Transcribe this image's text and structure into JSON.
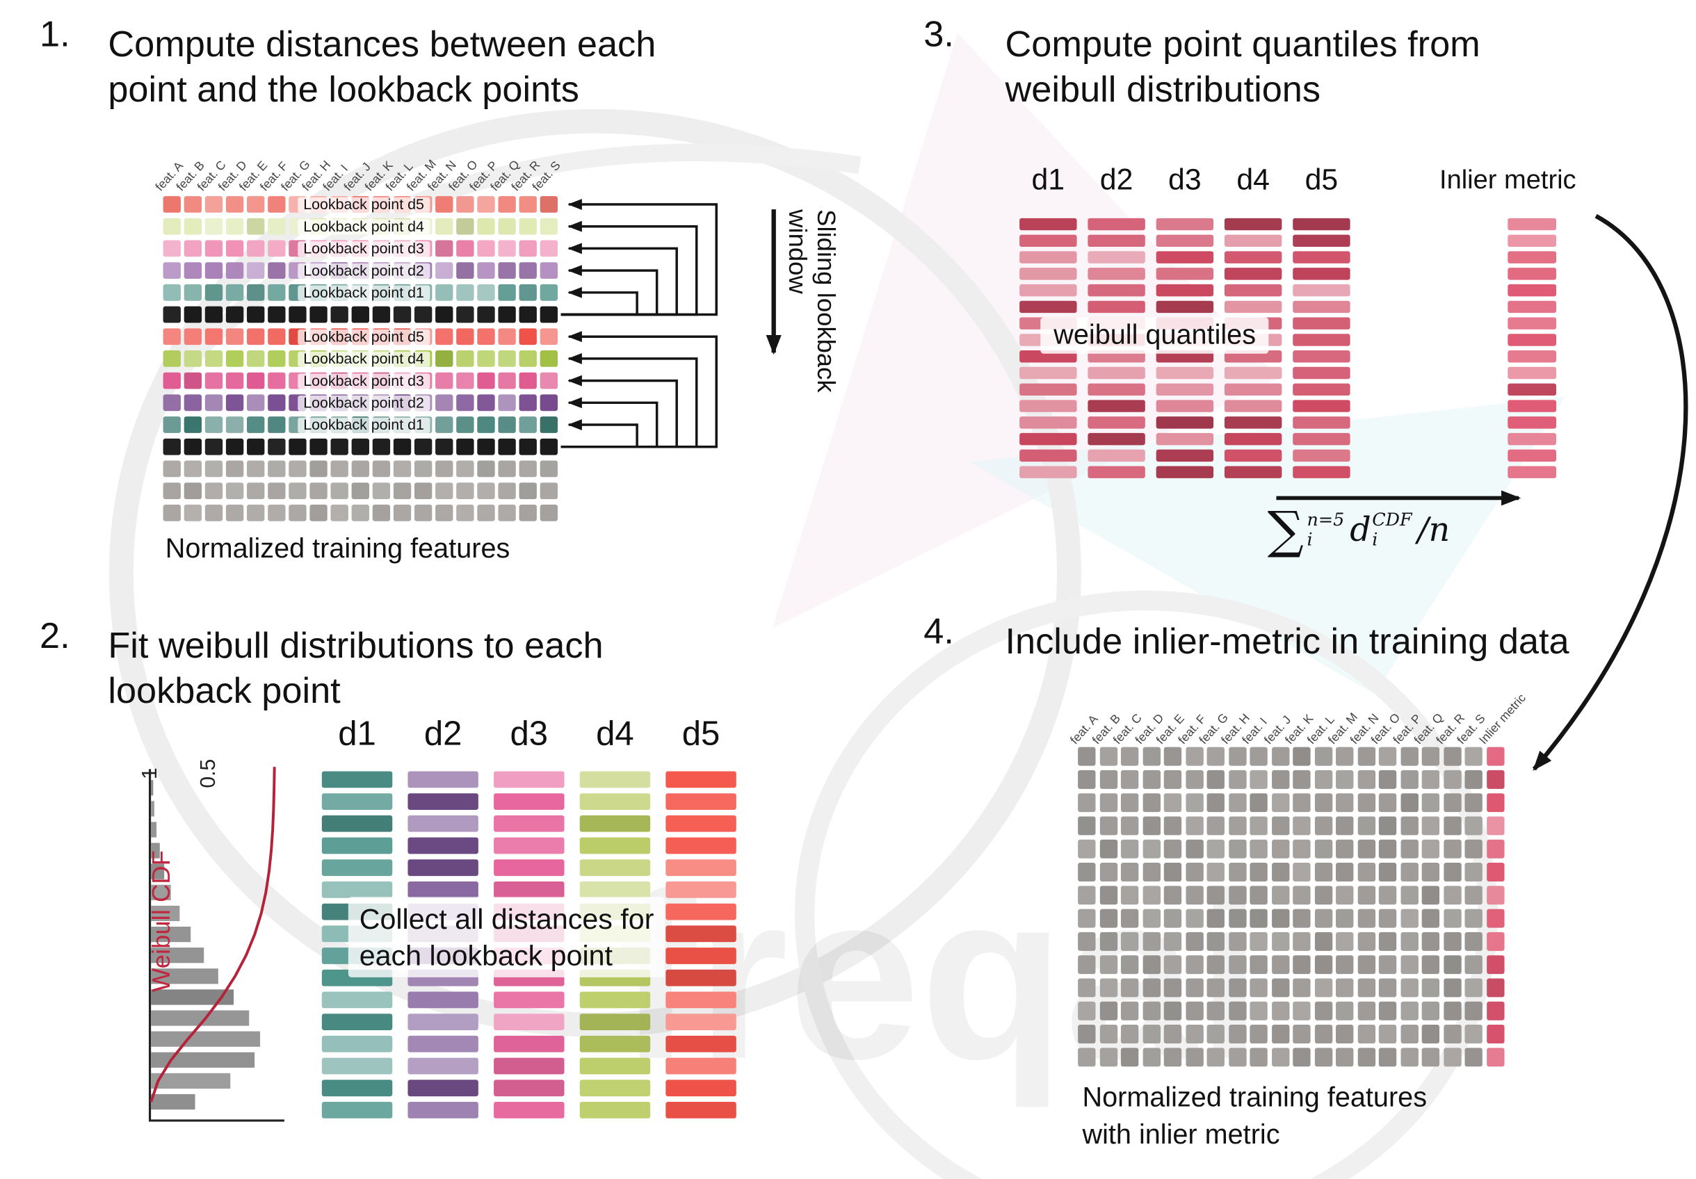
{
  "watermark": {
    "text": "freqai"
  },
  "features": [
    "feat. A",
    "feat. B",
    "feat. C",
    "feat. D",
    "feat. E",
    "feat. F",
    "feat. G",
    "feat. H",
    "feat. I",
    "feat. J",
    "feat. K",
    "feat. L",
    "feat. M",
    "feat. N",
    "feat. O",
    "feat. P",
    "feat. Q",
    "feat. R",
    "feat. S"
  ],
  "panel1": {
    "number": "1.",
    "title": "Compute distances between each point and the lookback points",
    "caption": "Normalized training features",
    "sliding_label": "Sliding lookback window",
    "rows": [
      {
        "type": "lookback",
        "color": "#f07a70",
        "label": "Lookback point d5"
      },
      {
        "type": "lookback",
        "color": "#dde8ae",
        "label": "Lookback point d4"
      },
      {
        "type": "lookback",
        "color": "#ee82ab",
        "label": "Lookback point d3"
      },
      {
        "type": "lookback",
        "color": "#a87fb8",
        "label": "Lookback point d2"
      },
      {
        "type": "lookback",
        "color": "#68a29a",
        "label": "Lookback point d1"
      },
      {
        "type": "black",
        "color": "#1c1c1c"
      },
      {
        "type": "lookback",
        "color": "#f04f46",
        "label": "Lookback point d5"
      },
      {
        "type": "lookback",
        "color": "#a9c84a",
        "label": "Lookback point d4"
      },
      {
        "type": "lookback",
        "color": "#e25c94",
        "label": "Lookback point d3"
      },
      {
        "type": "lookback",
        "color": "#7a4d92",
        "label": "Lookback point d2"
      },
      {
        "type": "lookback",
        "color": "#3f7d75",
        "label": "Lookback point d1"
      },
      {
        "type": "black",
        "color": "#1c1c1c"
      },
      {
        "type": "gray",
        "color": "#a9a6a3"
      },
      {
        "type": "gray",
        "color": "#a9a6a3"
      },
      {
        "type": "gray",
        "color": "#a9a6a3"
      }
    ]
  },
  "panel2": {
    "number": "2.",
    "title": "Fit weibull distributions to each lookback point",
    "col_headers": [
      "d1",
      "d2",
      "d3",
      "d4",
      "d5"
    ],
    "col_colors": [
      "#4f968d",
      "#7b5596",
      "#e8679e",
      "#b9cc62",
      "#f5554a"
    ],
    "overlay": "Collect all distances for\neach lookback point",
    "cdf_label": "Weibull CDF",
    "tick_1": "1",
    "tick_05": "0.5",
    "rows": 16
  },
  "panel3": {
    "number": "3.",
    "title": "Compute point quantiles from weibull distributions",
    "col_headers": [
      "d1",
      "d2",
      "d3",
      "d4",
      "d5"
    ],
    "quantiles_label": "weibull quantiles",
    "inlier_label": "Inlier metric",
    "bar_base": "#cf4a63",
    "inlier_base": "#df5570",
    "rows": 16,
    "formula": {
      "sum": "∑",
      "sup": "n=5",
      "sub": "i",
      "var": "d",
      "var_sup": "CDF",
      "var_sub": "i",
      "tail": "/n"
    }
  },
  "panel4": {
    "number": "4.",
    "title": "Include inlier-metric in training data",
    "inlier_header": "Inlier metric",
    "caption": "Normalized training features\nwith inlier metric",
    "gray": "#9c9996",
    "inlier_base": "#df5570",
    "rows": 14,
    "cols": 19
  }
}
